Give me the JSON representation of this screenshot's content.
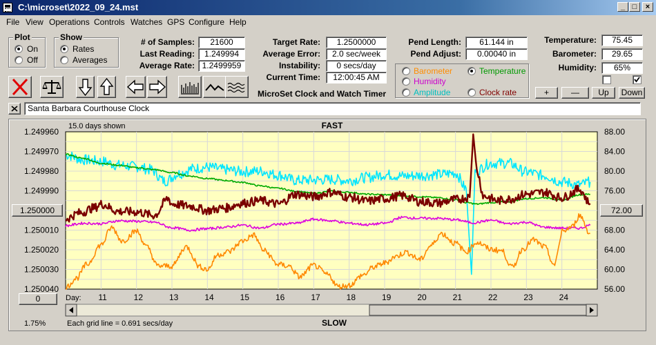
{
  "window": {
    "title": "C:\\microset\\2022_09_24.mst"
  },
  "menu": [
    "File",
    "View",
    "Operations",
    "Controls",
    "Watches",
    "GPS",
    "Configure",
    "Help"
  ],
  "plot_group": {
    "title": "Plot",
    "options": [
      {
        "label": "On",
        "selected": true
      },
      {
        "label": "Off",
        "selected": false
      }
    ]
  },
  "show_group": {
    "title": "Show",
    "options": [
      {
        "label": "Rates",
        "selected": true
      },
      {
        "label": "Averages",
        "selected": false
      }
    ]
  },
  "stats": {
    "samples_label": "# of Samples:",
    "samples": "21600",
    "last_label": "Last Reading:",
    "last": "1.249994",
    "avg_rate_label": "Average Rate:",
    "avg_rate": "1.2499959"
  },
  "rates": {
    "target_label": "Target Rate:",
    "target": "1.2500000",
    "avg_error_label": "Average Error:",
    "avg_error": "2.0 sec/week",
    "instability_label": "Instability:",
    "instability": "0 secs/day",
    "time_label": "Current Time:",
    "time": "12:00:45 AM",
    "app_label": "MicroSet Clock and Watch Timer"
  },
  "pend": {
    "length_label": "Pend Length:",
    "length": "61.144 in",
    "adjust_label": "Pend Adjust:",
    "adjust": "0.00040 in"
  },
  "env": {
    "temp_label": "Temperature:",
    "temp": "75.45",
    "baro_label": "Barometer:",
    "baro": "29.65",
    "hum_label": "Humidity:",
    "hum": "65%"
  },
  "series_select": [
    {
      "label": "Barometer",
      "color": "#ff8c00",
      "selected": false
    },
    {
      "label": "Temperature",
      "color": "#009900",
      "selected": true
    },
    {
      "label": "Humidity",
      "color": "#cc00cc",
      "selected": false
    },
    {
      "label": "Amplitude",
      "color": "#00c0c0",
      "selected": false
    },
    {
      "label": "Clock rate",
      "color": "#800000",
      "selected": false
    }
  ],
  "scale_buttons": [
    "+",
    "—",
    "Up",
    "Down"
  ],
  "watch_name": "Santa Barbara Courthouse Clock",
  "chart_data": {
    "type": "line",
    "top_label": "FAST",
    "bottom_label": "SLOW",
    "days_shown": "15.0 days shown",
    "grid_note": "Each grid line = 0.691 secs/day",
    "left_axis_ticks": [
      "1.249960",
      "1.249970",
      "1.249980",
      "1.249990",
      "1.250000",
      "1.250010",
      "1.250020",
      "1.250030",
      "1.250040"
    ],
    "right_axis_ticks": [
      "88.00",
      "84.00",
      "80.00",
      "76.00",
      "72.00",
      "68.00",
      "64.00",
      "60.00",
      "56.00"
    ],
    "left_range": [
      1.24996,
      1.25004
    ],
    "right_range": [
      56,
      88
    ],
    "x_label": "Day:",
    "x_range": [
      10,
      25
    ],
    "x_ticks": [
      11,
      12,
      13,
      14,
      15,
      16,
      17,
      18,
      19,
      20,
      21,
      22,
      23,
      24
    ],
    "left_button": "1.250000",
    "right_button": "72.00",
    "bottom_button": "0",
    "percent": "1.75%",
    "series": [
      {
        "color": "#00e5ff",
        "points": [
          [
            10,
            83.3
          ],
          [
            10.5,
            82.3
          ],
          [
            11,
            82.0
          ],
          [
            11.5,
            81.2
          ],
          [
            12,
            80.9
          ],
          [
            12.4,
            80.3
          ],
          [
            12.8,
            78.0
          ],
          [
            13.2,
            79.5
          ],
          [
            13.6,
            80.5
          ],
          [
            14,
            80.8
          ],
          [
            14.5,
            80.3
          ],
          [
            15,
            79.9
          ],
          [
            15.5,
            80.0
          ],
          [
            16,
            79.2
          ],
          [
            16.5,
            78.1
          ],
          [
            17,
            78.2
          ],
          [
            17.5,
            78.3
          ],
          [
            18,
            78.1
          ],
          [
            18.5,
            78.7
          ],
          [
            19,
            79.3
          ],
          [
            19.5,
            79.0
          ],
          [
            20,
            79.1
          ],
          [
            20.5,
            79.3
          ],
          [
            21,
            79.6
          ],
          [
            21.3,
            76.5
          ],
          [
            21.45,
            59.0
          ],
          [
            21.55,
            80.0
          ],
          [
            22,
            81.6
          ],
          [
            22.5,
            81.6
          ],
          [
            23,
            79.8
          ],
          [
            23.5,
            79.1
          ],
          [
            24,
            77.8
          ],
          [
            24.5,
            77.2
          ],
          [
            24.8,
            77.8
          ]
        ]
      },
      {
        "color": "#00aa00",
        "points": [
          [
            10,
            83.4
          ],
          [
            10.5,
            82.6
          ],
          [
            11,
            81.6
          ],
          [
            11.5,
            81.2
          ],
          [
            12,
            80.7
          ],
          [
            12.5,
            80.3
          ],
          [
            13,
            79.7
          ],
          [
            13.5,
            79.0
          ],
          [
            14,
            78.5
          ],
          [
            14.5,
            78.1
          ],
          [
            15,
            77.7
          ],
          [
            15.5,
            77.0
          ],
          [
            16,
            76.5
          ],
          [
            16.5,
            75.9
          ],
          [
            17,
            75.5
          ],
          [
            17.5,
            75.9
          ],
          [
            18,
            75.7
          ],
          [
            18.5,
            75.3
          ],
          [
            19,
            75.2
          ],
          [
            19.5,
            75.0
          ],
          [
            20,
            74.8
          ],
          [
            20.5,
            74.6
          ],
          [
            21,
            74.2
          ],
          [
            21.3,
            73.6
          ],
          [
            21.6,
            73.3
          ],
          [
            22,
            73.6
          ],
          [
            22.5,
            73.8
          ],
          [
            23,
            74.4
          ],
          [
            23.5,
            74.6
          ],
          [
            24,
            74.1
          ],
          [
            24.5,
            75.2
          ],
          [
            24.8,
            75.3
          ]
        ]
      },
      {
        "color": "#7a0000",
        "points": [
          [
            10,
            70.3
          ],
          [
            10.4,
            71.5
          ],
          [
            10.8,
            72.5
          ],
          [
            11,
            73.3
          ],
          [
            11.5,
            71.8
          ],
          [
            12,
            71.7
          ],
          [
            12.5,
            71.0
          ],
          [
            12.9,
            74.4
          ],
          [
            13,
            73.3
          ],
          [
            13.5,
            72.9
          ],
          [
            14,
            72.0
          ],
          [
            14.5,
            72.5
          ],
          [
            15,
            73.5
          ],
          [
            15.5,
            74.0
          ],
          [
            16,
            73.3
          ],
          [
            16.5,
            75.3
          ],
          [
            17,
            74.8
          ],
          [
            17.5,
            75.7
          ],
          [
            18,
            74.7
          ],
          [
            18.5,
            73.9
          ],
          [
            19,
            74.4
          ],
          [
            19.5,
            75.0
          ],
          [
            20,
            73.8
          ],
          [
            20.5,
            73.5
          ],
          [
            21,
            74.2
          ],
          [
            21.4,
            74.7
          ],
          [
            21.5,
            87.5
          ],
          [
            21.6,
            80.0
          ],
          [
            21.8,
            74.9
          ],
          [
            22.2,
            74.0
          ],
          [
            22.5,
            74.3
          ],
          [
            23,
            75.3
          ],
          [
            23.5,
            75.7
          ],
          [
            24,
            74.6
          ],
          [
            24.5,
            76.3
          ],
          [
            24.8,
            73.4
          ]
        ]
      },
      {
        "color": "#dd00dd",
        "points": [
          [
            10,
            68.9
          ],
          [
            10.5,
            69.4
          ],
          [
            11,
            69.3
          ],
          [
            11.5,
            69.9
          ],
          [
            12,
            69.8
          ],
          [
            12.5,
            69.6
          ],
          [
            13,
            68.5
          ],
          [
            13.5,
            68.0
          ],
          [
            14,
            68.3
          ],
          [
            14.5,
            68.6
          ],
          [
            15,
            69.0
          ],
          [
            15.5,
            68.4
          ],
          [
            16,
            69.2
          ],
          [
            16.5,
            69.4
          ],
          [
            17,
            70.2
          ],
          [
            17.5,
            69.9
          ],
          [
            18,
            69.4
          ],
          [
            18.5,
            69.1
          ],
          [
            19,
            69.4
          ],
          [
            19.5,
            70.6
          ],
          [
            20,
            70.4
          ],
          [
            20.5,
            70.4
          ],
          [
            21,
            70.1
          ],
          [
            21.5,
            69.5
          ],
          [
            22,
            70.0
          ],
          [
            22.5,
            69.3
          ],
          [
            23,
            69.6
          ],
          [
            23.5,
            68.6
          ],
          [
            24,
            68.4
          ],
          [
            24.5,
            68.4
          ],
          [
            24.8,
            69.0
          ]
        ]
      },
      {
        "color": "#ff8800",
        "points": [
          [
            10,
            56.3
          ],
          [
            10.3,
            58.2
          ],
          [
            10.6,
            61.0
          ],
          [
            11,
            65.0
          ],
          [
            11.3,
            68.5
          ],
          [
            11.6,
            65.8
          ],
          [
            12,
            67.8
          ],
          [
            12.3,
            64.5
          ],
          [
            12.6,
            60.7
          ],
          [
            13,
            60.7
          ],
          [
            13.4,
            64.6
          ],
          [
            13.8,
            60.5
          ],
          [
            14,
            60.0
          ],
          [
            14.3,
            63.0
          ],
          [
            14.6,
            63.6
          ],
          [
            15,
            65.8
          ],
          [
            15.3,
            67.0
          ],
          [
            15.6,
            63.8
          ],
          [
            16,
            61.0
          ],
          [
            16.3,
            60.7
          ],
          [
            16.6,
            58.5
          ],
          [
            17,
            60.8
          ],
          [
            17.4,
            58.9
          ],
          [
            17.7,
            56.5
          ],
          [
            18,
            56.8
          ],
          [
            18.4,
            58.9
          ],
          [
            18.7,
            60.5
          ],
          [
            19,
            61.3
          ],
          [
            19.3,
            62.6
          ],
          [
            19.6,
            63.5
          ],
          [
            20,
            62.0
          ],
          [
            20.3,
            64.8
          ],
          [
            20.6,
            67.3
          ],
          [
            21,
            65.3
          ],
          [
            21.3,
            63.6
          ],
          [
            21.6,
            65.5
          ],
          [
            22,
            64.1
          ],
          [
            22.3,
            63.8
          ],
          [
            22.6,
            60.4
          ],
          [
            22.9,
            64.2
          ],
          [
            23.2,
            66.0
          ],
          [
            23.5,
            64.6
          ],
          [
            23.8,
            60.8
          ],
          [
            24,
            67.7
          ],
          [
            24.3,
            68.7
          ],
          [
            24.5,
            71.0
          ],
          [
            24.8,
            67.3
          ]
        ]
      }
    ]
  }
}
